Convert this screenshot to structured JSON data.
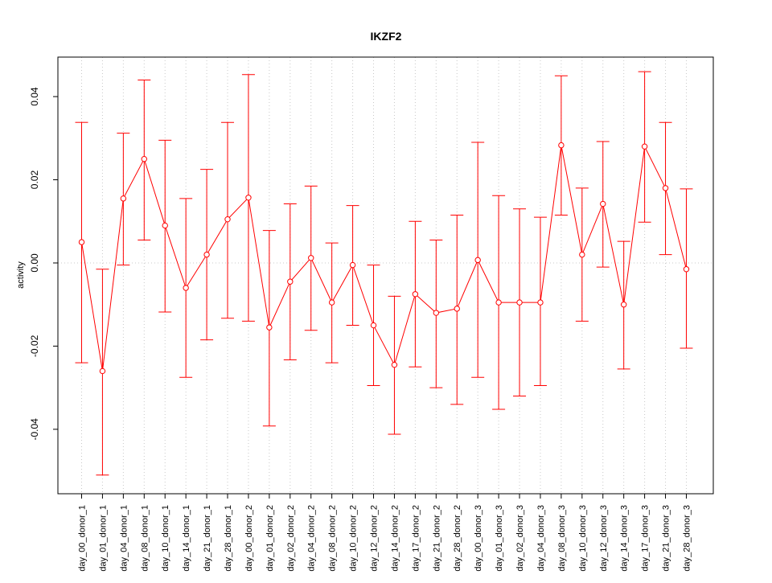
{
  "chart_data": {
    "type": "line",
    "title": "IKZF2",
    "xlabel": "",
    "ylabel": "activity",
    "ylim": [
      -0.0555,
      0.0495
    ],
    "y_ticks": [
      -0.04,
      -0.02,
      0.0,
      0.02,
      0.04
    ],
    "y_tick_labels": [
      "-0.04",
      "-0.02",
      "0.00",
      "0.02",
      "0.04"
    ],
    "grid": true,
    "legend": "none",
    "colors": {
      "series": "#ff0000",
      "grid": "#c8c8c8",
      "axis": "#000000"
    },
    "categories": [
      "day_00_donor_1",
      "day_01_donor_1",
      "day_04_donor_1",
      "day_08_donor_1",
      "day_10_donor_1",
      "day_14_donor_1",
      "day_21_donor_1",
      "day_28_donor_1",
      "day_00_donor_2",
      "day_01_donor_2",
      "day_02_donor_2",
      "day_04_donor_2",
      "day_08_donor_2",
      "day_10_donor_2",
      "day_12_donor_2",
      "day_14_donor_2",
      "day_17_donor_2",
      "day_21_donor_2",
      "day_28_donor_2",
      "day_00_donor_3",
      "day_01_donor_3",
      "day_02_donor_3",
      "day_04_donor_3",
      "day_08_donor_3",
      "day_10_donor_3",
      "day_12_donor_3",
      "day_14_donor_3",
      "day_17_donor_3",
      "day_21_donor_3",
      "day_28_donor_3"
    ],
    "series": [
      {
        "values": [
          0.005,
          -0.026,
          0.0155,
          0.025,
          0.009,
          -0.006,
          0.002,
          0.0105,
          0.0157,
          -0.0155,
          -0.0045,
          0.0012,
          -0.0095,
          -0.0005,
          -0.015,
          -0.0245,
          -0.0075,
          -0.012,
          -0.011,
          0.0007,
          -0.0095,
          -0.0095,
          -0.0095,
          0.0283,
          0.002,
          0.0142,
          -0.01,
          0.028,
          0.018,
          -0.0015
        ],
        "upper": [
          0.0338,
          -0.0015,
          0.0312,
          0.044,
          0.0295,
          0.0155,
          0.0225,
          0.0338,
          0.0453,
          0.0078,
          0.0142,
          0.0185,
          0.0048,
          0.0138,
          -0.0005,
          -0.008,
          0.01,
          0.0055,
          0.0115,
          0.029,
          0.0162,
          0.013,
          0.011,
          0.045,
          0.018,
          0.0292,
          0.0052,
          0.046,
          0.0338,
          0.0178
        ],
        "lower": [
          -0.024,
          -0.051,
          -0.0005,
          0.0055,
          -0.0118,
          -0.0275,
          -0.0185,
          -0.0133,
          -0.014,
          -0.0392,
          -0.0233,
          -0.0162,
          -0.024,
          -0.015,
          -0.0295,
          -0.0412,
          -0.025,
          -0.03,
          -0.034,
          -0.0275,
          -0.0352,
          -0.032,
          -0.0295,
          0.0115,
          -0.014,
          -0.001,
          -0.0255,
          0.0098,
          0.002,
          -0.0205
        ]
      }
    ]
  }
}
